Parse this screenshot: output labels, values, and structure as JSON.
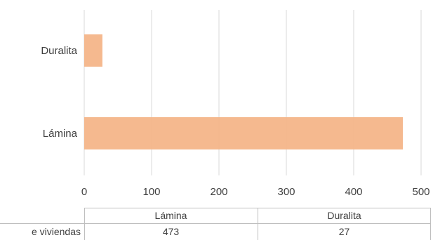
{
  "chart_data": {
    "type": "bar",
    "orientation": "horizontal",
    "categories": [
      "Duralita",
      "Lámina"
    ],
    "series": [
      {
        "values": [
          27,
          473
        ]
      }
    ],
    "xlim": [
      0,
      500
    ],
    "xticks": [
      0,
      100,
      200,
      300,
      400,
      500
    ],
    "grid": true,
    "bar_color": "#F4B183",
    "title": "",
    "xlabel": "",
    "ylabel": ""
  },
  "data_table": {
    "columns": [
      "Lámina",
      "Duralita"
    ],
    "row_label": "e viviendas",
    "values": [
      "473",
      "27"
    ]
  }
}
